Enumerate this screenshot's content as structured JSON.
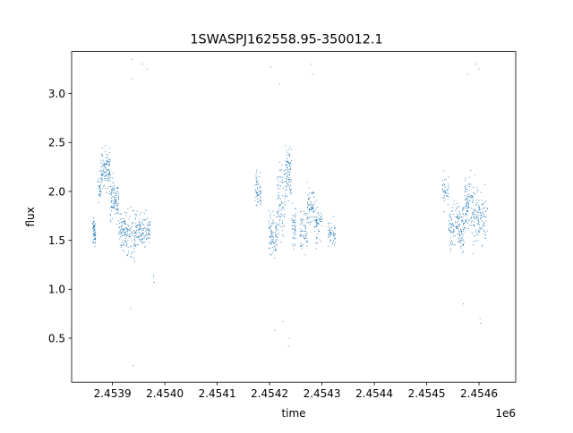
{
  "chart_data": {
    "type": "scatter",
    "title": "1SWASPJ162558.95-350012.1",
    "xlabel": "time",
    "ylabel": "flux",
    "x_offset_label": "1e6",
    "xlim": [
      2453822,
      2454670
    ],
    "ylim": [
      0.05,
      3.43
    ],
    "x_ticks": [
      2453900,
      2454000,
      2454100,
      2454200,
      2454300,
      2454400,
      2454500,
      2454600
    ],
    "x_tick_labels": [
      "2.4539",
      "2.4540",
      "2.4541",
      "2.4542",
      "2.4543",
      "2.4544",
      "2.4545",
      "2.4546"
    ],
    "y_ticks": [
      0.5,
      1.0,
      1.5,
      2.0,
      2.5,
      3.0
    ],
    "y_tick_labels": [
      "0.5",
      "1.0",
      "1.5",
      "2.0",
      "2.5",
      "3.0"
    ],
    "marker_color": "#1f77b4",
    "grid": false,
    "legend": "none",
    "segments": [
      {
        "t0": 2453862,
        "t1": 2453868,
        "mean": 1.58,
        "spread": 0.11,
        "n": 60
      },
      {
        "t0": 2453872,
        "t1": 2453878,
        "mean": 2.05,
        "spread": 0.12,
        "n": 30
      },
      {
        "t0": 2453878,
        "t1": 2453896,
        "mean": 2.22,
        "spread": 0.18,
        "n": 120
      },
      {
        "t0": 2453896,
        "t1": 2453912,
        "mean": 1.92,
        "spread": 0.17,
        "n": 100
      },
      {
        "t0": 2453912,
        "t1": 2453928,
        "mean": 1.6,
        "spread": 0.17,
        "n": 90
      },
      {
        "t0": 2453928,
        "t1": 2453944,
        "mean": 1.55,
        "spread": 0.22,
        "n": 70
      },
      {
        "t0": 2453944,
        "t1": 2453958,
        "mean": 1.58,
        "spread": 0.15,
        "n": 70
      },
      {
        "t0": 2453958,
        "t1": 2453972,
        "mean": 1.6,
        "spread": 0.14,
        "n": 60
      },
      {
        "t0": 2453978,
        "t1": 2453980,
        "mean": 1.1,
        "spread": 0.12,
        "n": 4
      },
      {
        "t0": 2454172,
        "t1": 2454184,
        "mean": 2.02,
        "spread": 0.15,
        "n": 60
      },
      {
        "t0": 2454198,
        "t1": 2454214,
        "mean": 1.55,
        "spread": 0.17,
        "n": 90
      },
      {
        "t0": 2454214,
        "t1": 2454230,
        "mean": 1.9,
        "spread": 0.3,
        "n": 90
      },
      {
        "t0": 2454230,
        "t1": 2454242,
        "mean": 2.2,
        "spread": 0.25,
        "n": 90
      },
      {
        "t0": 2454242,
        "t1": 2454250,
        "mean": 1.65,
        "spread": 0.2,
        "n": 45
      },
      {
        "t0": 2454258,
        "t1": 2454272,
        "mean": 1.6,
        "spread": 0.2,
        "n": 60
      },
      {
        "t0": 2454272,
        "t1": 2454286,
        "mean": 1.85,
        "spread": 0.18,
        "n": 70
      },
      {
        "t0": 2454286,
        "t1": 2454300,
        "mean": 1.65,
        "spread": 0.15,
        "n": 60
      },
      {
        "t0": 2454312,
        "t1": 2454326,
        "mean": 1.58,
        "spread": 0.1,
        "n": 50
      },
      {
        "t0": 2454530,
        "t1": 2454542,
        "mean": 2.0,
        "spread": 0.14,
        "n": 40
      },
      {
        "t0": 2454542,
        "t1": 2454558,
        "mean": 1.65,
        "spread": 0.18,
        "n": 70
      },
      {
        "t0": 2454558,
        "t1": 2454572,
        "mean": 1.65,
        "spread": 0.2,
        "n": 90
      },
      {
        "t0": 2454572,
        "t1": 2454586,
        "mean": 1.85,
        "spread": 0.25,
        "n": 90
      },
      {
        "t0": 2454586,
        "t1": 2454600,
        "mean": 1.75,
        "spread": 0.25,
        "n": 80
      },
      {
        "t0": 2454600,
        "t1": 2454616,
        "mean": 1.7,
        "spread": 0.22,
        "n": 60
      }
    ],
    "outliers": [
      {
        "x": 2453937,
        "y": 3.35
      },
      {
        "x": 2453938,
        "y": 3.15
      },
      {
        "x": 2453935,
        "y": 0.8
      },
      {
        "x": 2453957,
        "y": 3.3
      },
      {
        "x": 2453966,
        "y": 3.25
      },
      {
        "x": 2453940,
        "y": 0.22
      },
      {
        "x": 2454202,
        "y": 3.27
      },
      {
        "x": 2454219,
        "y": 3.1
      },
      {
        "x": 2454210,
        "y": 0.58
      },
      {
        "x": 2454225,
        "y": 0.67
      },
      {
        "x": 2454238,
        "y": 0.5
      },
      {
        "x": 2454236,
        "y": 0.42
      },
      {
        "x": 2454280,
        "y": 3.3
      },
      {
        "x": 2454282,
        "y": 3.2
      },
      {
        "x": 2454578,
        "y": 3.2
      },
      {
        "x": 2454594,
        "y": 3.3
      },
      {
        "x": 2454600,
        "y": 3.25
      },
      {
        "x": 2454602,
        "y": 0.7
      },
      {
        "x": 2454603,
        "y": 0.65
      },
      {
        "x": 2454570,
        "y": 0.85
      }
    ]
  }
}
